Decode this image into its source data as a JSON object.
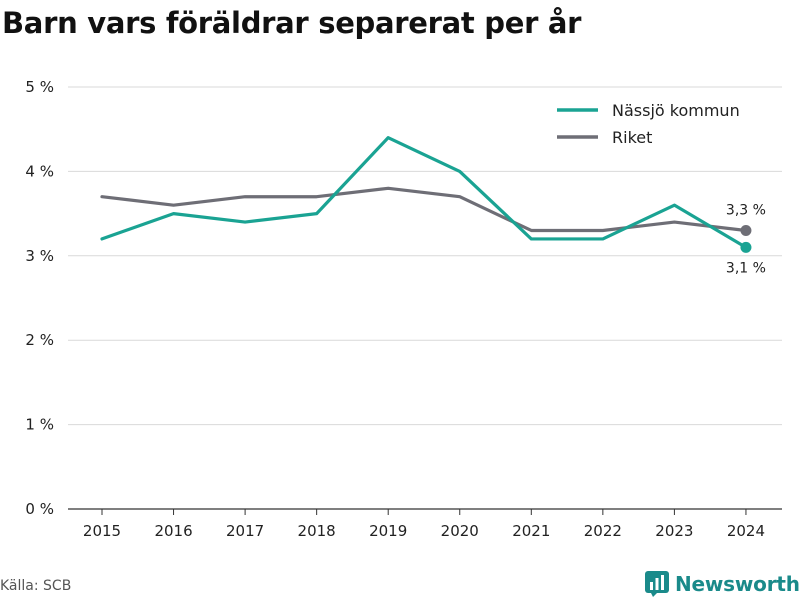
{
  "title": "Barn vars föräldrar separerat per år",
  "source": "Källa: SCB",
  "brand": {
    "name": "Newsworthy",
    "icon": "bar-chart-logo-icon"
  },
  "colors": {
    "nassjo": "#1aa393",
    "riket": "#6e6e76",
    "grid": "#d9d9d9",
    "axis": "#333333",
    "brand": "#1a8a8a"
  },
  "chart_data": {
    "type": "line",
    "title": "Barn vars föräldrar separerat per år",
    "xlabel": "",
    "ylabel": "",
    "x": [
      "2015",
      "2016",
      "2017",
      "2018",
      "2019",
      "2020",
      "2021",
      "2022",
      "2023",
      "2024"
    ],
    "ylim": [
      0,
      5
    ],
    "yticks": [
      0,
      1,
      2,
      3,
      4,
      5
    ],
    "ytick_labels": [
      "0 %",
      "1 %",
      "2 %",
      "3 %",
      "4 %",
      "5 %"
    ],
    "grid": true,
    "legend": "top-right",
    "series": [
      {
        "name": "Nässjö kommun",
        "values": [
          3.2,
          3.5,
          3.4,
          3.5,
          4.4,
          4.0,
          3.2,
          3.2,
          3.6,
          3.1
        ],
        "end_label": "3,1 %"
      },
      {
        "name": "Riket",
        "values": [
          3.7,
          3.6,
          3.7,
          3.7,
          3.8,
          3.7,
          3.3,
          3.3,
          3.4,
          3.3
        ],
        "end_label": "3,3 %"
      }
    ]
  }
}
